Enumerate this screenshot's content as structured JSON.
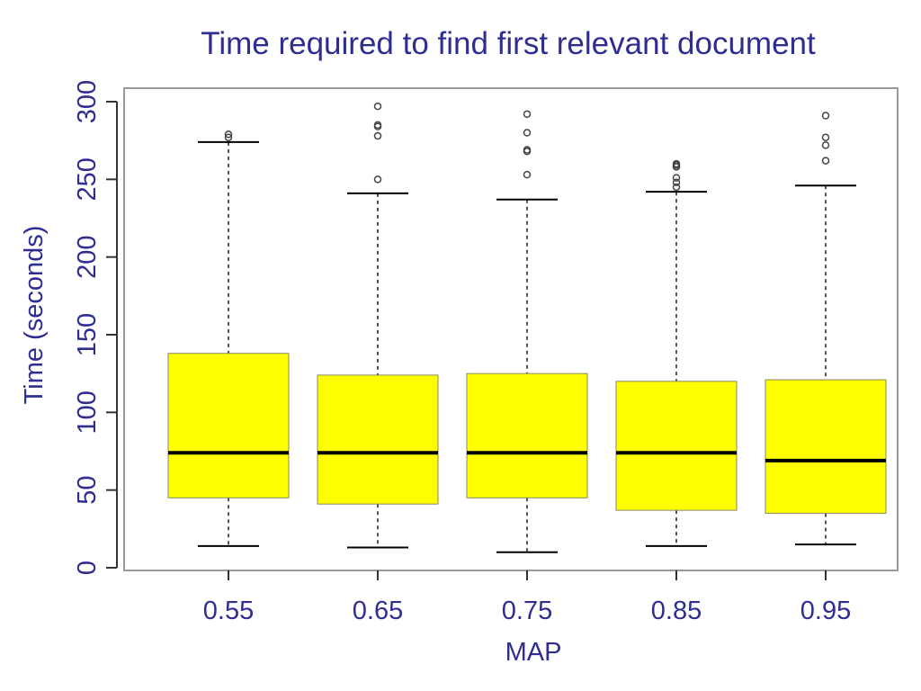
{
  "colors": {
    "text": "#2e2e91",
    "box_fill": "#ffff00",
    "median": "#000000",
    "whisker": "#555555",
    "outlier": "#444444",
    "frame": "#999999"
  },
  "chart_data": {
    "type": "boxplot",
    "title": "Time required to find first relevant document",
    "xlabel": "MAP",
    "ylabel": "Time (seconds)",
    "ylim": [
      0,
      300
    ],
    "y_ticks": [
      0,
      50,
      100,
      150,
      200,
      250,
      300
    ],
    "grid": false,
    "legend": "none",
    "categories": [
      "0.55",
      "0.65",
      "0.75",
      "0.85",
      "0.95"
    ],
    "boxes": [
      {
        "category": "0.55",
        "whisker_low": 14,
        "q1": 45,
        "median": 74,
        "q3": 138,
        "whisker_high": 274,
        "outliers": [
          277,
          279
        ]
      },
      {
        "category": "0.65",
        "whisker_low": 13,
        "q1": 41,
        "median": 74,
        "q3": 124,
        "whisker_high": 241,
        "outliers": [
          250,
          278,
          284,
          285,
          297
        ]
      },
      {
        "category": "0.75",
        "whisker_low": 10,
        "q1": 45,
        "median": 74,
        "q3": 125,
        "whisker_high": 237,
        "outliers": [
          253,
          268,
          269,
          280,
          292
        ]
      },
      {
        "category": "0.85",
        "whisker_low": 14,
        "q1": 37,
        "median": 74,
        "q3": 120,
        "whisker_high": 242,
        "outliers": [
          245,
          248,
          251,
          258,
          259,
          260
        ]
      },
      {
        "category": "0.95",
        "whisker_low": 15,
        "q1": 35,
        "median": 69,
        "q3": 121,
        "whisker_high": 246,
        "outliers": [
          262,
          272,
          277,
          291
        ]
      }
    ]
  }
}
